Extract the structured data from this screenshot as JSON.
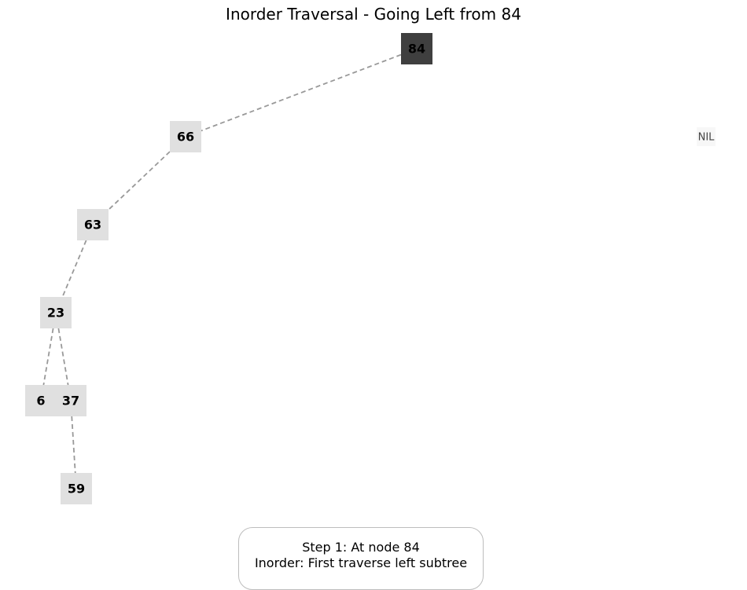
{
  "title": "Inorder Traversal - Going Left from 84",
  "tree": {
    "current_node": "84",
    "nodes": [
      {
        "id": "n84",
        "label": "84",
        "state": "current"
      },
      {
        "id": "n66",
        "label": "66",
        "state": "normal"
      },
      {
        "id": "n63",
        "label": "63",
        "state": "normal"
      },
      {
        "id": "n23",
        "label": "23",
        "state": "normal"
      },
      {
        "id": "n6",
        "label": "6",
        "state": "normal"
      },
      {
        "id": "n37",
        "label": "37",
        "state": "normal"
      },
      {
        "id": "n59",
        "label": "59",
        "state": "normal"
      },
      {
        "id": "nil",
        "label": "NIL",
        "state": "nil"
      }
    ],
    "edges": [
      [
        "n84",
        "n66"
      ],
      [
        "n66",
        "n63"
      ],
      [
        "n63",
        "n23"
      ],
      [
        "n23",
        "n6"
      ],
      [
        "n23",
        "n37"
      ],
      [
        "n37",
        "n59"
      ]
    ]
  },
  "colors": {
    "current_fill": "#3f3f3f",
    "node_fill": "#e0e0e0",
    "nil_fill": "#f7f7f7",
    "edge": "#999999"
  },
  "step": {
    "line1": "Step 1: At node 84",
    "line2": "Inorder: First traverse left subtree"
  }
}
